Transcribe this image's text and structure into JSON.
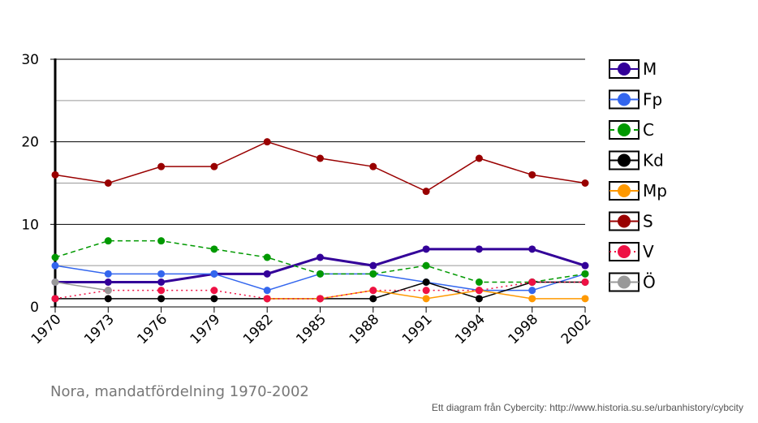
{
  "chart_data": {
    "type": "line",
    "title": "",
    "caption": "Nora, mandatfördelning 1970-2002",
    "credit": "Ett diagram från Cybercity: http://www.historia.su.se/urbanhistory/cybcity",
    "xlabel": "",
    "ylabel": "",
    "categories": [
      "1970",
      "1973",
      "1976",
      "1979",
      "1982",
      "1985",
      "1988",
      "1991",
      "1994",
      "1998",
      "2002"
    ],
    "ylim": [
      0,
      30
    ],
    "yticks": [
      0,
      10,
      20,
      30
    ],
    "ytick_labels": [
      "0",
      "10",
      "20",
      "30"
    ],
    "grid": true,
    "legend_position": "right",
    "series": [
      {
        "name": "M",
        "color": "#330099",
        "dash": "solid",
        "width": 3,
        "values": [
          3,
          3,
          3,
          4,
          4,
          6,
          5,
          7,
          7,
          7,
          5
        ]
      },
      {
        "name": "Fp",
        "color": "#3366ee",
        "dash": "solid",
        "width": 1.5,
        "values": [
          5,
          4,
          4,
          4,
          2,
          4,
          4,
          3,
          2,
          2,
          4
        ]
      },
      {
        "name": "C",
        "color": "#009900",
        "dash": "dashed",
        "width": 1.5,
        "values": [
          6,
          8,
          8,
          7,
          6,
          4,
          4,
          5,
          3,
          3,
          4
        ]
      },
      {
        "name": "Kd",
        "color": "#000000",
        "dash": "solid",
        "width": 1.5,
        "values": [
          1,
          1,
          1,
          1,
          1,
          1,
          1,
          3,
          1,
          3,
          3
        ]
      },
      {
        "name": "Mp",
        "color": "#ff9900",
        "dash": "solid",
        "width": 1.5,
        "values": [
          null,
          null,
          null,
          null,
          1,
          1,
          2,
          1,
          2,
          1,
          1
        ]
      },
      {
        "name": "S",
        "color": "#990000",
        "dash": "solid",
        "width": 1.5,
        "values": [
          16,
          15,
          17,
          17,
          20,
          18,
          17,
          14,
          18,
          16,
          15
        ]
      },
      {
        "name": "V",
        "color": "#ee1144",
        "dash": "dotted",
        "width": 1.5,
        "values": [
          1,
          2,
          2,
          2,
          1,
          1,
          2,
          2,
          2,
          3,
          3
        ]
      },
      {
        "name": "Ö",
        "color": "#999999",
        "dash": "solid",
        "width": 1.5,
        "values": [
          3,
          2,
          null,
          null,
          null,
          null,
          null,
          null,
          null,
          null,
          null
        ]
      }
    ]
  }
}
